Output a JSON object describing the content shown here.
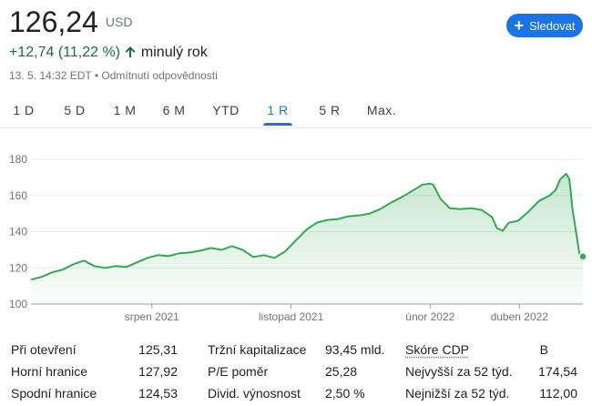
{
  "quote": {
    "price": "126,24",
    "currency": "USD",
    "change": "+12,74 (11,22 %)",
    "period": "minulý rok",
    "timestamp": "13. 5. 14:32 EDT • Odmítnutí odpovědnosti",
    "follow_label": "Sledovat",
    "up_color": "#137333",
    "accent_color": "#1a73e8"
  },
  "tabs": [
    {
      "label": "1 D",
      "active": false
    },
    {
      "label": "5 D",
      "active": false
    },
    {
      "label": "1 M",
      "active": false
    },
    {
      "label": "6 M",
      "active": false
    },
    {
      "label": "YTD",
      "active": false
    },
    {
      "label": "1 R",
      "active": true
    },
    {
      "label": "5 R",
      "active": false
    },
    {
      "label": "Max.",
      "active": false
    }
  ],
  "chart_data": {
    "type": "area",
    "title": "",
    "xlabel": "",
    "ylabel": "",
    "ylim": [
      100,
      180
    ],
    "yticks": [
      100,
      120,
      140,
      160,
      180
    ],
    "xlim": [
      "2021-05-13",
      "2022-05-13"
    ],
    "xticks": [
      {
        "label": "srpen 2021",
        "date": "2021-08-01"
      },
      {
        "label": "listopad 2021",
        "date": "2021-11-01"
      },
      {
        "label": "únor 2022",
        "date": "2022-02-01"
      },
      {
        "label": "duben 2022",
        "date": "2022-04-01"
      }
    ],
    "line_color": "#34a853",
    "grid": true,
    "series": [
      {
        "points": [
          [
            "2021-05-13",
            113.5
          ],
          [
            "2021-05-20",
            115
          ],
          [
            "2021-05-27",
            117.5
          ],
          [
            "2021-06-03",
            119
          ],
          [
            "2021-06-10",
            122
          ],
          [
            "2021-06-17",
            124
          ],
          [
            "2021-06-24",
            121
          ],
          [
            "2021-07-01",
            120
          ],
          [
            "2021-07-08",
            121
          ],
          [
            "2021-07-15",
            120.5
          ],
          [
            "2021-07-22",
            123
          ],
          [
            "2021-07-29",
            125.5
          ],
          [
            "2021-08-05",
            127
          ],
          [
            "2021-08-12",
            126.5
          ],
          [
            "2021-08-19",
            128
          ],
          [
            "2021-08-26",
            128.5
          ],
          [
            "2021-09-02",
            129.5
          ],
          [
            "2021-09-09",
            131
          ],
          [
            "2021-09-16",
            130
          ],
          [
            "2021-09-23",
            132
          ],
          [
            "2021-09-30",
            130
          ],
          [
            "2021-10-07",
            126
          ],
          [
            "2021-10-14",
            127
          ],
          [
            "2021-10-21",
            125.5
          ],
          [
            "2021-10-28",
            129
          ],
          [
            "2021-11-04",
            135
          ],
          [
            "2021-11-11",
            141
          ],
          [
            "2021-11-18",
            145
          ],
          [
            "2021-11-25",
            146.5
          ],
          [
            "2021-12-02",
            147
          ],
          [
            "2021-12-09",
            148.5
          ],
          [
            "2021-12-16",
            149
          ],
          [
            "2021-12-23",
            150
          ],
          [
            "2021-12-30",
            152.5
          ],
          [
            "2022-01-06",
            156
          ],
          [
            "2022-01-13",
            159
          ],
          [
            "2022-01-20",
            162.5
          ],
          [
            "2022-01-27",
            166
          ],
          [
            "2022-02-01",
            166.5
          ],
          [
            "2022-02-03",
            166
          ],
          [
            "2022-02-08",
            158
          ],
          [
            "2022-02-14",
            153
          ],
          [
            "2022-02-21",
            152.5
          ],
          [
            "2022-02-28",
            153
          ],
          [
            "2022-03-07",
            152
          ],
          [
            "2022-03-14",
            148
          ],
          [
            "2022-03-17",
            142
          ],
          [
            "2022-03-21",
            140.5
          ],
          [
            "2022-03-25",
            145
          ],
          [
            "2022-03-31",
            146
          ],
          [
            "2022-04-07",
            151
          ],
          [
            "2022-04-14",
            157
          ],
          [
            "2022-04-21",
            160
          ],
          [
            "2022-04-25",
            163
          ],
          [
            "2022-04-28",
            169
          ],
          [
            "2022-05-02",
            172
          ],
          [
            "2022-05-04",
            169
          ],
          [
            "2022-05-05",
            162
          ],
          [
            "2022-05-06",
            153
          ],
          [
            "2022-05-09",
            137
          ],
          [
            "2022-05-11",
            126
          ],
          [
            "2022-05-12",
            124.5
          ],
          [
            "2022-05-13",
            126.24
          ]
        ]
      }
    ]
  },
  "stats": {
    "rows": [
      [
        {
          "label": "Při otevření",
          "value": "125,31"
        },
        {
          "label": "Tržní kapitalizace",
          "value": "93,45 mld."
        },
        {
          "label": "Skóre CDP",
          "value": "B"
        }
      ],
      [
        {
          "label": "Horní hranice",
          "value": "127,92"
        },
        {
          "label": "P/E poměr",
          "value": "25,28"
        },
        {
          "label": "Nejvyšší za 52 týd.",
          "value": "174,54"
        }
      ],
      [
        {
          "label": "Spodní hranice",
          "value": "124,53"
        },
        {
          "label": "Divid. výnosnost",
          "value": "2,50 %"
        },
        {
          "label": "Nejnižší za 52 týd.",
          "value": "112,00"
        }
      ]
    ]
  }
}
